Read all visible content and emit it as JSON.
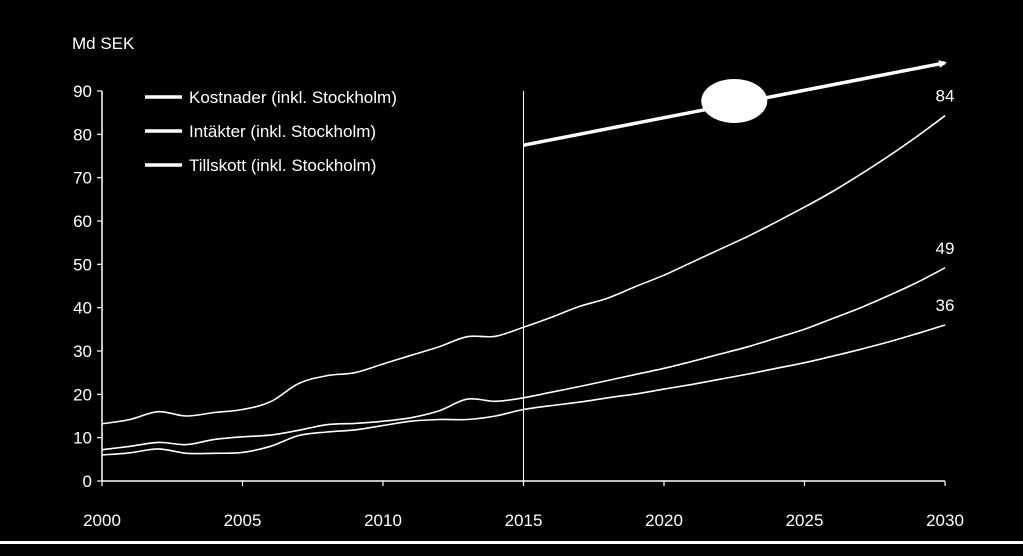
{
  "chart_data": {
    "type": "line",
    "title": "",
    "xlabel": "",
    "ylabel": "Md SEK",
    "xlim": [
      2000,
      2030
    ],
    "ylim": [
      0,
      90
    ],
    "x_ticks": [
      2000,
      2005,
      2010,
      2015,
      2020,
      2025,
      2030
    ],
    "y_ticks": [
      0,
      10,
      20,
      30,
      40,
      50,
      60,
      70,
      80,
      90
    ],
    "grid": false,
    "legend_position": "top-left",
    "vertical_marker_x": 2015,
    "series": [
      {
        "name": "Kostnader (inkl. Stockholm)",
        "color": "#ffffff",
        "end_label": "84",
        "points": [
          [
            2000,
            13.2
          ],
          [
            2001,
            14.2
          ],
          [
            2002,
            16.0
          ],
          [
            2003,
            15.0
          ],
          [
            2004,
            15.8
          ],
          [
            2005,
            16.5
          ],
          [
            2006,
            18.3
          ],
          [
            2007,
            22.5
          ],
          [
            2008,
            24.3
          ],
          [
            2009,
            25.0
          ],
          [
            2010,
            27.0
          ],
          [
            2011,
            29.0
          ],
          [
            2012,
            31.0
          ],
          [
            2013,
            33.3
          ],
          [
            2014,
            33.4
          ],
          [
            2015,
            35.5
          ],
          [
            2016,
            37.8
          ],
          [
            2017,
            40.3
          ],
          [
            2018,
            42.2
          ],
          [
            2019,
            44.9
          ],
          [
            2020,
            47.5
          ],
          [
            2021,
            50.5
          ],
          [
            2022,
            53.5
          ],
          [
            2023,
            56.5
          ],
          [
            2024,
            59.8
          ],
          [
            2025,
            63.2
          ],
          [
            2026,
            66.8
          ],
          [
            2027,
            70.8
          ],
          [
            2028,
            75.0
          ],
          [
            2029,
            79.5
          ],
          [
            2030,
            84.3
          ]
        ]
      },
      {
        "name": "Intäkter (inkl. Stockholm)",
        "color": "#ffffff",
        "end_label": "49",
        "points": [
          [
            2000,
            7.2
          ],
          [
            2001,
            8.0
          ],
          [
            2002,
            8.9
          ],
          [
            2003,
            8.4
          ],
          [
            2004,
            9.6
          ],
          [
            2005,
            10.2
          ],
          [
            2006,
            10.6
          ],
          [
            2007,
            11.7
          ],
          [
            2008,
            13.0
          ],
          [
            2009,
            13.3
          ],
          [
            2010,
            13.8
          ],
          [
            2011,
            14.6
          ],
          [
            2012,
            16.2
          ],
          [
            2013,
            18.9
          ],
          [
            2014,
            18.4
          ],
          [
            2015,
            19.2
          ],
          [
            2016,
            20.5
          ],
          [
            2017,
            21.8
          ],
          [
            2018,
            23.2
          ],
          [
            2019,
            24.6
          ],
          [
            2020,
            26.0
          ],
          [
            2021,
            27.6
          ],
          [
            2022,
            29.3
          ],
          [
            2023,
            31.0
          ],
          [
            2024,
            33.0
          ],
          [
            2025,
            35.0
          ],
          [
            2026,
            37.5
          ],
          [
            2027,
            40.0
          ],
          [
            2028,
            42.8
          ],
          [
            2029,
            45.8
          ],
          [
            2030,
            49.2
          ]
        ]
      },
      {
        "name": "Tillskott (inkl. Stockholm)",
        "color": "#ffffff",
        "end_label": "36",
        "points": [
          [
            2000,
            6.0
          ],
          [
            2001,
            6.5
          ],
          [
            2002,
            7.4
          ],
          [
            2003,
            6.4
          ],
          [
            2004,
            6.4
          ],
          [
            2005,
            6.6
          ],
          [
            2006,
            8.0
          ],
          [
            2007,
            10.5
          ],
          [
            2008,
            11.3
          ],
          [
            2009,
            11.8
          ],
          [
            2010,
            12.8
          ],
          [
            2011,
            13.8
          ],
          [
            2012,
            14.2
          ],
          [
            2013,
            14.2
          ],
          [
            2014,
            15.0
          ],
          [
            2015,
            16.5
          ],
          [
            2016,
            17.4
          ],
          [
            2017,
            18.2
          ],
          [
            2018,
            19.2
          ],
          [
            2019,
            20.1
          ],
          [
            2020,
            21.2
          ],
          [
            2021,
            22.3
          ],
          [
            2022,
            23.5
          ],
          [
            2023,
            24.7
          ],
          [
            2024,
            26.0
          ],
          [
            2025,
            27.3
          ],
          [
            2026,
            28.8
          ],
          [
            2027,
            30.4
          ],
          [
            2028,
            32.1
          ],
          [
            2029,
            34.0
          ],
          [
            2030,
            36.0
          ]
        ]
      }
    ],
    "annotation_arrow": {
      "from": [
        2015,
        77.5
      ],
      "to": [
        2030,
        96.5
      ],
      "color": "#ffffff",
      "ellipse_at": [
        2022.5,
        87.7
      ]
    }
  }
}
